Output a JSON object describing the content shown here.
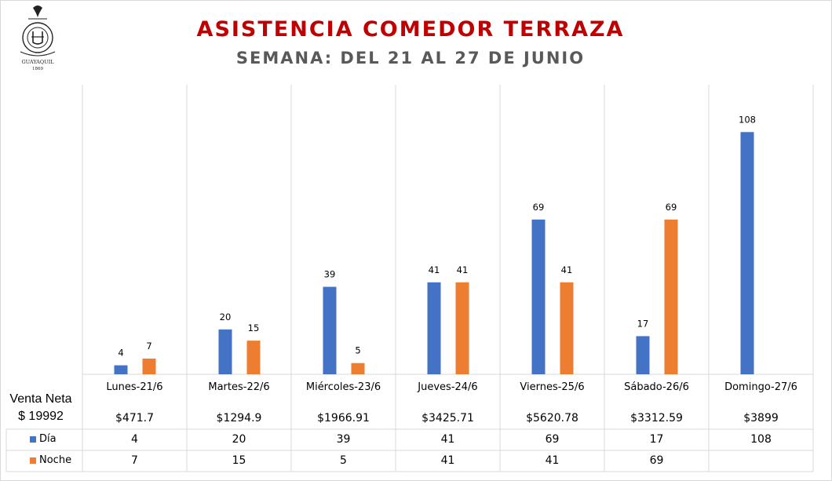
{
  "logo": {
    "text": "CLUB DE LA UNION",
    "city": "GUAYAQUIL",
    "year": "1869"
  },
  "chart_data": {
    "type": "bar",
    "title": "ASISTENCIA COMEDOR TERRAZA",
    "subtitle": "SEMANA: DEL 21 AL 27 DE JUNIO",
    "categories": [
      "Lunes-21/6",
      "Martes-22/6",
      "Miércoles-23/6",
      "Jueves-24/6",
      "Viernes-25/6",
      "Sábado-26/6",
      "Domingo-27/6"
    ],
    "series": [
      {
        "name": "Día",
        "color": "#4472c4",
        "values": [
          4,
          20,
          39,
          41,
          69,
          17,
          108
        ]
      },
      {
        "name": "Noche",
        "color": "#ed7d31",
        "values": [
          7,
          15,
          5,
          41,
          41,
          69,
          null
        ]
      }
    ],
    "ylim": [
      0,
      120
    ],
    "grid": "vertical category separators",
    "legend": "data table"
  },
  "table": {
    "venta_label": "Venta Neta",
    "venta_total": "$ 19992",
    "ventas": [
      "$471.7",
      "$1294.9",
      "$1966.91",
      "$3425.71",
      "$5620.78",
      "$3312.59",
      "$3899"
    ],
    "dia_label": "Día",
    "noche_label": "Noche",
    "dia": [
      "4",
      "20",
      "39",
      "41",
      "69",
      "17",
      "108"
    ],
    "noche": [
      "7",
      "15",
      "5",
      "41",
      "41",
      "69",
      ""
    ]
  }
}
